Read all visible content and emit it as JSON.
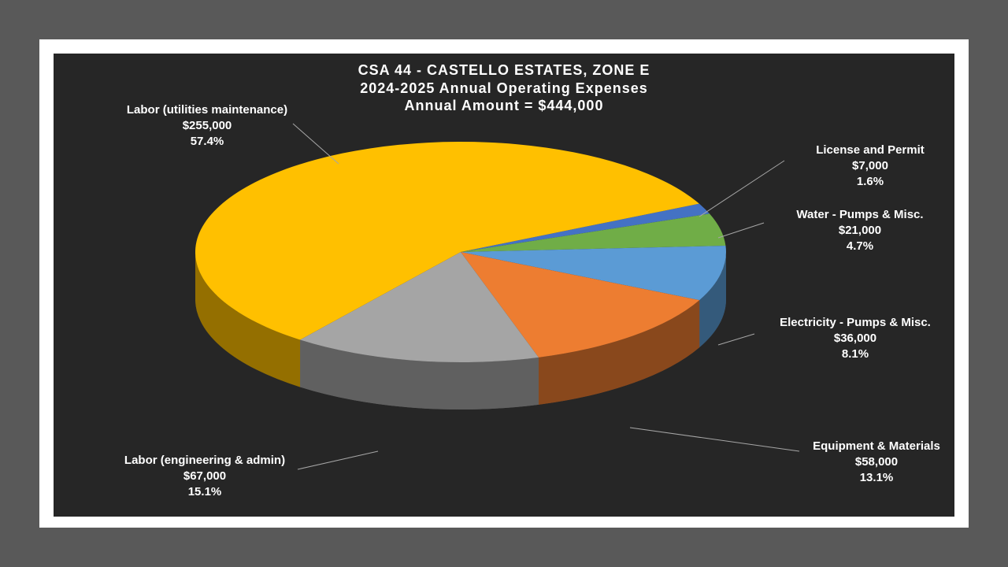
{
  "chart_data": {
    "type": "pie",
    "title": [
      "CSA 44 - CASTELLO ESTATES, ZONE E",
      "2024-2025 Annual Operating Expenses",
      "Annual Amount = $444,000"
    ],
    "categories": [
      "License and Permit",
      "Water - Pumps & Misc.",
      "Electricity - Pumps & Misc.",
      "Equipment & Materials",
      "Labor (engineering & admin)",
      "Labor (utilities maintenance)"
    ],
    "values": [
      7000,
      21000,
      36000,
      58000,
      67000,
      255000
    ],
    "value_labels": [
      "$7,000",
      "$21,000",
      "$36,000",
      "$58,000",
      "$67,000",
      "$255,000"
    ],
    "percents": [
      1.6,
      4.7,
      8.1,
      13.1,
      15.1,
      57.4
    ],
    "percent_labels": [
      "1.6%",
      "4.7%",
      "8.1%",
      "13.1%",
      "15.1%",
      "57.4%"
    ],
    "colors": [
      "#4472c4",
      "#70ad47",
      "#5b9bd5",
      "#ed7d31",
      "#a5a5a5",
      "#ffc000"
    ]
  }
}
